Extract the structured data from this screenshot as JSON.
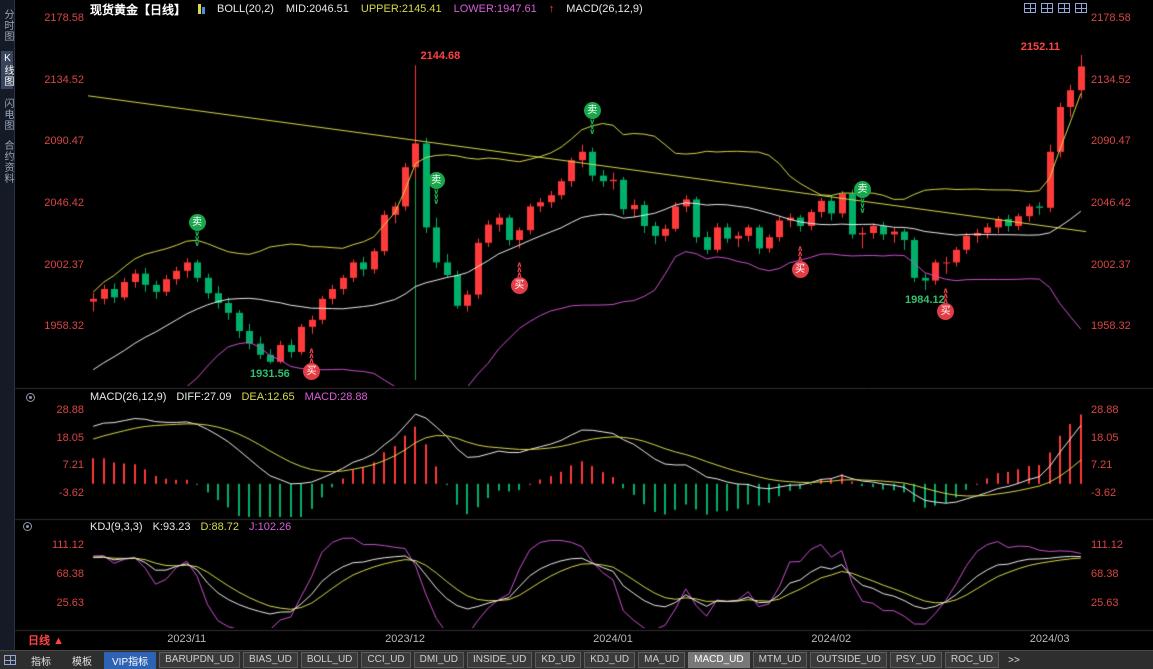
{
  "header": {
    "title": "现货黄金【日线】",
    "boll": "BOLL(20,2)",
    "mid": "MID:2046.51",
    "upper": "UPPER:2145.41",
    "lower": "LOWER:1947.61",
    "arrow": "↑",
    "macd": "MACD(26,12,9)"
  },
  "sidebar": {
    "items": [
      "分时图",
      "K线图",
      "闪电图",
      "合约资料"
    ],
    "selected_index": 1
  },
  "macd_header": {
    "title": "MACD(26,12,9)",
    "diff": "DIFF:27.09",
    "dea": "DEA:12.65",
    "macd": "MACD:28.88"
  },
  "kdj_header": {
    "title": "KDJ(9,3,3)",
    "k": "K:93.23",
    "d": "D:88.72",
    "j": "J:102.26"
  },
  "bottom": {
    "period_label": "日线",
    "period_arrow": "▲"
  },
  "bottom_tabs": [
    {
      "label": "指标",
      "style": "plain"
    },
    {
      "label": "模板",
      "style": "plain"
    },
    {
      "label": "VIP指标",
      "style": "vip"
    },
    {
      "label": "BARUPDN_UD",
      "style": "btn"
    },
    {
      "label": "BIAS_UD",
      "style": "btn"
    },
    {
      "label": "BOLL_UD",
      "style": "btn"
    },
    {
      "label": "CCI_UD",
      "style": "btn"
    },
    {
      "label": "DMI_UD",
      "style": "btn"
    },
    {
      "label": "INSIDE_UD",
      "style": "btn"
    },
    {
      "label": "KD_UD",
      "style": "btn"
    },
    {
      "label": "KDJ_UD",
      "style": "btn"
    },
    {
      "label": "MA_UD",
      "style": "btn"
    },
    {
      "label": "MACD_UD",
      "style": "btn-active"
    },
    {
      "label": "MTM_UD",
      "style": "btn"
    },
    {
      "label": "OUTSIDE_UD",
      "style": "btn"
    },
    {
      "label": "PSY_UD",
      "style": "btn"
    },
    {
      "label": "ROC_UD",
      "style": "btn"
    },
    {
      "label": ">>",
      "style": "more"
    }
  ],
  "marker_labels": {
    "buy": "买",
    "sell": "卖"
  },
  "colors": {
    "up": "#ff3a3a",
    "down": "#00b06a",
    "boll_upper": "#d8d848",
    "boll_mid": "#ececec",
    "boll_lower": "#c94fd0",
    "trendline": "#d8d848",
    "diff_line": "#ececec",
    "dea_line": "#d8d848",
    "hist_pos": "#ff3a3a",
    "hist_neg": "#00b06a",
    "k_line": "#ececec",
    "d_line": "#d8d848",
    "j_line": "#c94fd0",
    "axis_tick": "#d94545",
    "date_tick": "#b9b9b9",
    "sell": "#18a74c",
    "buy": "#e23c46",
    "annotation_high": "#ff4242",
    "annotation_low": "#2fbf71",
    "vline": "#18a74c",
    "divider": "#2e2e2e"
  },
  "chart_data": {
    "type": "candlestick",
    "title": "现货黄金 日线 (Spot Gold Daily)",
    "layout": {
      "plot_left": 88,
      "plot_right": 1086,
      "main": {
        "top": 18,
        "bottom": 386,
        "top_price": 2178.58,
        "ppu": 1.4
      },
      "macd": {
        "ref_val": 28.88,
        "ref_y": 410,
        "ppu": 2.555,
        "clip_top": 392,
        "clip_bottom": 517
      },
      "kdj": {
        "ref_val": 111.12,
        "ref_y": 545,
        "ppu": 0.6785,
        "clip_top": 534,
        "clip_bottom": 628
      },
      "dividers": [
        388,
        519,
        630
      ]
    },
    "main": {
      "yticks": [
        2178.58,
        2134.52,
        2090.47,
        2046.42,
        2002.37,
        1958.32
      ],
      "xticks": [
        {
          "index": 9,
          "label": "2023/11"
        },
        {
          "index": 30,
          "label": "2023/12"
        },
        {
          "index": 50,
          "label": "2024/01"
        },
        {
          "index": 71,
          "label": "2024/02"
        },
        {
          "index": 92,
          "label": "2024/03"
        }
      ],
      "boll_params": {
        "period": 20,
        "mult": 2
      },
      "trendline": {
        "p1": 2123,
        "p2": 2026
      },
      "vline": {
        "index": 31,
        "from_price": 2144.68
      },
      "annotations": [
        {
          "index": 31,
          "price": 2144.68,
          "text": "2144.68",
          "color": "#ff4242",
          "placement": "above-right"
        },
        {
          "index": 95,
          "price": 2152.11,
          "text": "2152.11",
          "color": "#ff4242",
          "placement": "above-left"
        },
        {
          "index": 17,
          "price": 1931.56,
          "text": "1931.56",
          "color": "#2fbf71",
          "placement": "below"
        },
        {
          "index": 80,
          "price": 1984.12,
          "text": "1984.12",
          "color": "#2fbf71",
          "placement": "below"
        }
      ],
      "markers": [
        {
          "index": 10,
          "type": "sell"
        },
        {
          "index": 33,
          "type": "sell"
        },
        {
          "index": 48,
          "type": "sell"
        },
        {
          "index": 74,
          "type": "sell"
        },
        {
          "index": 21,
          "type": "buy"
        },
        {
          "index": 41,
          "type": "buy"
        },
        {
          "index": 68,
          "type": "buy"
        },
        {
          "index": 82,
          "type": "buy"
        }
      ],
      "prehistory_closes": [
        1875,
        1872,
        1878,
        1882,
        1879,
        1885,
        1889,
        1887,
        1893,
        1898,
        1895,
        1902,
        1908,
        1905,
        1912,
        1918,
        1924,
        1921,
        1928,
        1936,
        1945,
        1942,
        1952,
        1960,
        1968,
        1975
      ],
      "candles": [
        [
          1976,
          1982,
          1969,
          1978
        ],
        [
          1978,
          1988,
          1974,
          1985
        ],
        [
          1985,
          1989,
          1975,
          1979
        ],
        [
          1979,
          1993,
          1977,
          1990
        ],
        [
          1990,
          1999,
          1986,
          1996
        ],
        [
          1996,
          2000,
          1983,
          1988
        ],
        [
          1988,
          1991,
          1978,
          1983
        ],
        [
          1983,
          1995,
          1980,
          1992
        ],
        [
          1992,
          2001,
          1988,
          1998
        ],
        [
          1998,
          2007,
          1993,
          2004
        ],
        [
          2004,
          2006,
          1990,
          1993
        ],
        [
          1993,
          1996,
          1978,
          1982
        ],
        [
          1982,
          1987,
          1971,
          1975
        ],
        [
          1975,
          1979,
          1963,
          1968
        ],
        [
          1968,
          1970,
          1950,
          1955
        ],
        [
          1955,
          1960,
          1942,
          1946
        ],
        [
          1946,
          1951,
          1935,
          1938
        ],
        [
          1938,
          1942,
          1931.56,
          1933
        ],
        [
          1933,
          1948,
          1931.8,
          1945
        ],
        [
          1945,
          1949,
          1936,
          1940
        ],
        [
          1940,
          1960,
          1938,
          1958
        ],
        [
          1958,
          1966,
          1953,
          1963
        ],
        [
          1963,
          1980,
          1960,
          1978
        ],
        [
          1978,
          1988,
          1974,
          1985
        ],
        [
          1985,
          1995,
          1981,
          1993
        ],
        [
          1993,
          2006,
          1990,
          2004
        ],
        [
          2004,
          2008,
          1994,
          1999
        ],
        [
          1999,
          2014,
          1996,
          2012
        ],
        [
          2012,
          2041,
          2009,
          2038
        ],
        [
          2038,
          2047,
          2032,
          2044
        ],
        [
          2044,
          2075,
          2041,
          2072
        ],
        [
          2072,
          2144.68,
          2064,
          2089
        ],
        [
          2089,
          2093,
          2025,
          2029
        ],
        [
          2029,
          2036,
          2000,
          2004
        ],
        [
          2004,
          2010,
          1993,
          1995
        ],
        [
          1995,
          1998,
          1971,
          1973
        ],
        [
          1973,
          1984,
          1969,
          1981
        ],
        [
          1981,
          2021,
          1978,
          2018
        ],
        [
          2018,
          2034,
          2015,
          2031
        ],
        [
          2031,
          2039,
          2026,
          2036
        ],
        [
          2036,
          2038,
          2016,
          2020
        ],
        [
          2020,
          2029,
          2014,
          2027
        ],
        [
          2027,
          2046,
          2024,
          2044
        ],
        [
          2044,
          2050,
          2040,
          2047
        ],
        [
          2047,
          2055,
          2043,
          2052
        ],
        [
          2052,
          2064,
          2049,
          2062
        ],
        [
          2062,
          2079,
          2058,
          2077
        ],
        [
          2077,
          2088,
          2072,
          2083
        ],
        [
          2083,
          2086,
          2062,
          2066
        ],
        [
          2066,
          2070,
          2058,
          2062
        ],
        [
          2062,
          2068,
          2056,
          2063
        ],
        [
          2063,
          2065,
          2038,
          2042
        ],
        [
          2042,
          2049,
          2036,
          2045
        ],
        [
          2045,
          2048,
          2025,
          2030
        ],
        [
          2030,
          2033,
          2017,
          2023
        ],
        [
          2023,
          2031,
          2019,
          2028
        ],
        [
          2028,
          2047,
          2026,
          2044
        ],
        [
          2044,
          2052,
          2040,
          2049
        ],
        [
          2049,
          2051,
          2018,
          2022
        ],
        [
          2022,
          2026,
          2010,
          2013
        ],
        [
          2013,
          2032,
          2011,
          2029
        ],
        [
          2029,
          2032,
          2018,
          2021
        ],
        [
          2021,
          2026,
          2015,
          2023
        ],
        [
          2023,
          2031,
          2019,
          2029
        ],
        [
          2029,
          2031,
          2010,
          2014
        ],
        [
          2014,
          2024,
          2011,
          2022
        ],
        [
          2022,
          2037,
          2019,
          2034
        ],
        [
          2034,
          2039,
          2029,
          2036
        ],
        [
          2036,
          2038,
          2026,
          2030
        ],
        [
          2030,
          2042,
          2027,
          2040
        ],
        [
          2040,
          2050,
          2036,
          2048
        ],
        [
          2048,
          2052,
          2034,
          2039
        ],
        [
          2039,
          2055,
          2036,
          2053
        ],
        [
          2053,
          2056,
          2021,
          2024
        ],
        [
          2024,
          2029,
          2014,
          2025
        ],
        [
          2025,
          2032,
          2021,
          2030
        ],
        [
          2030,
          2033,
          2020,
          2024
        ],
        [
          2024,
          2029,
          2018,
          2026
        ],
        [
          2026,
          2028,
          2013,
          2020
        ],
        [
          2020,
          2022,
          1990,
          1993
        ],
        [
          1993,
          1996,
          1984.12,
          1991
        ],
        [
          1991,
          2006,
          1988,
          2004
        ],
        [
          2004,
          2008,
          1996,
          2004
        ],
        [
          2004,
          2015,
          2001,
          2013
        ],
        [
          2013,
          2025,
          2010,
          2023
        ],
        [
          2023,
          2028,
          2018,
          2025
        ],
        [
          2025,
          2032,
          2021,
          2029
        ],
        [
          2029,
          2037,
          2025,
          2035
        ],
        [
          2035,
          2038,
          2026,
          2030
        ],
        [
          2030,
          2039,
          2027,
          2037
        ],
        [
          2037,
          2046,
          2033,
          2044
        ],
        [
          2044,
          2047,
          2038,
          2043
        ],
        [
          2043,
          2088,
          2040,
          2083
        ],
        [
          2083,
          2118,
          2079,
          2115
        ],
        [
          2115,
          2131,
          2108,
          2127
        ],
        [
          2127,
          2152.11,
          2121,
          2144
        ]
      ]
    },
    "macd": {
      "yticks": [
        28.88,
        18.05,
        7.21,
        -3.62
      ],
      "params": [
        26,
        12,
        9
      ]
    },
    "kdj": {
      "yticks": [
        111.12,
        68.38,
        25.63
      ],
      "params": [
        9,
        3,
        3
      ]
    }
  }
}
